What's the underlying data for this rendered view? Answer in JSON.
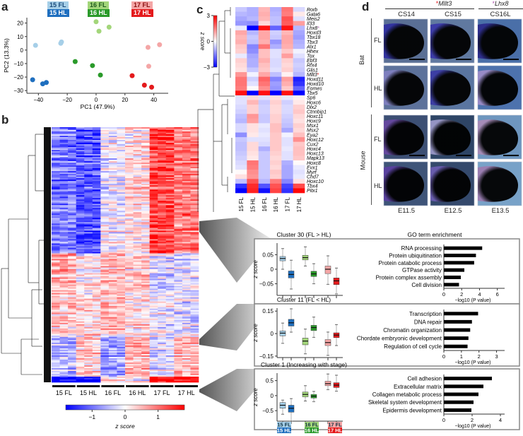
{
  "panels": {
    "a": "a",
    "b": "b",
    "c": "c",
    "d": "d"
  },
  "colors": {
    "15FL": "#a6cfe8",
    "15HL": "#1f6fbf",
    "16FL": "#a3d67a",
    "16HL": "#2a9a2a",
    "17FL": "#f4a6a6",
    "17HL": "#e41a1c"
  },
  "legend": [
    {
      "label": "15 FL",
      "key": "15FL"
    },
    {
      "label": "15 HL",
      "key": "15HL"
    },
    {
      "label": "16 FL",
      "key": "16FL"
    },
    {
      "label": "16 HL",
      "key": "16HL"
    },
    {
      "label": "17 FL",
      "key": "17FL"
    },
    {
      "label": "17 HL",
      "key": "17HL"
    }
  ],
  "chart_data": [
    {
      "id": "pca",
      "type": "scatter",
      "xlabel": "PC1 (47.9%)",
      "ylabel": "PC2 (13.3%)",
      "xlim": [
        -48,
        50
      ],
      "ylim": [
        -32,
        24
      ],
      "xticks": [
        -40,
        -20,
        0,
        20,
        40
      ],
      "yticks": [
        20,
        10,
        0,
        -10,
        -20,
        -30
      ],
      "series": [
        {
          "name": "15 FL",
          "key": "15FL",
          "points": [
            [
              -42,
              3.5
            ],
            [
              -24.5,
              5
            ],
            [
              -24,
              6
            ]
          ]
        },
        {
          "name": "15 HL",
          "key": "15HL",
          "points": [
            [
              -44,
              -22
            ],
            [
              -37,
              -25
            ],
            [
              -34.5,
              -24
            ]
          ]
        },
        {
          "name": "16 FL",
          "key": "16FL",
          "points": [
            [
              0,
              21
            ],
            [
              2,
              14
            ],
            [
              9,
              17
            ]
          ]
        },
        {
          "name": "16 HL",
          "key": "16HL",
          "points": [
            [
              -14.5,
              -8.5
            ],
            [
              -2.5,
              -11.5
            ],
            [
              3,
              -18.5
            ]
          ]
        },
        {
          "name": "17 FL",
          "key": "17FL",
          "points": [
            [
              36,
              2
            ],
            [
              44,
              4
            ],
            [
              36.5,
              -12
            ]
          ]
        },
        {
          "name": "17 HL",
          "key": "17HL",
          "points": [
            [
              25,
              -19
            ],
            [
              33.5,
              -26
            ],
            [
              38.5,
              -27.5
            ]
          ]
        }
      ]
    },
    {
      "id": "heatmap-b",
      "type": "heatmap",
      "columns": [
        "15 FL",
        "15 HL",
        "16 FL",
        "16 HL",
        "17 FL",
        "17 HL"
      ],
      "colorbar": {
        "label": "z score",
        "ticks": [
          -1,
          0,
          1
        ],
        "range": [
          -1.8,
          1.8
        ]
      },
      "description": "Clustered gene expression z-scores, 3 replicates per group"
    },
    {
      "id": "heatmap-c",
      "type": "heatmap",
      "columns": [
        "15 FL",
        "15 HL",
        "16 FL",
        "16 HL",
        "17 FL",
        "17 HL"
      ],
      "colorbar": {
        "label": "z score",
        "ticks": [
          3,
          0,
          -3
        ],
        "range": [
          -3,
          3
        ]
      },
      "rows": [
        {
          "gene": "Rorb",
          "v": [
            -0.6,
            -0.9,
            0.8,
            -0.9,
            1.6,
            -0.4
          ]
        },
        {
          "gene": "Gata6",
          "v": [
            -0.8,
            -0.9,
            0.9,
            -0.8,
            1.5,
            0.2
          ]
        },
        {
          "gene": "Meis2",
          "v": [
            -1.0,
            -0.8,
            0.8,
            -0.7,
            2.0,
            -0.3
          ]
        },
        {
          "gene": "Il33",
          "v": [
            -1.2,
            -1.3,
            0.4,
            -0.7,
            1.9,
            1.1
          ]
        },
        {
          "gene": "Lhx8*",
          "v": [
            -0.2,
            -3,
            2.8,
            -1.8,
            2.8,
            -0.8
          ],
          "star": "#b05ab0"
        },
        {
          "gene": "Hoxd3",
          "v": [
            1.0,
            -0.8,
            1.0,
            -0.5,
            0.8,
            -1.0
          ]
        },
        {
          "gene": "Tbx18",
          "v": [
            0.8,
            -0.6,
            1.0,
            -0.6,
            1.0,
            -1.1
          ]
        },
        {
          "gene": "Tbx3",
          "v": [
            0.9,
            -0.7,
            0.9,
            -1.2,
            1.0,
            -0.9
          ]
        },
        {
          "gene": "Alx1",
          "v": [
            0.6,
            -1.4,
            1.6,
            -0.9,
            0.9,
            -0.8
          ]
        },
        {
          "gene": "Hhex",
          "v": [
            0.5,
            -1.3,
            0.7,
            -0.3,
            0.6,
            -0.1
          ]
        },
        {
          "gene": "Tox",
          "v": [
            -0.2,
            -1.0,
            0.7,
            -0.3,
            1.1,
            -0.3
          ]
        },
        {
          "gene": "Ebf3",
          "v": [
            0.5,
            -0.9,
            0.9,
            -0.4,
            0.5,
            -0.6
          ]
        },
        {
          "gene": "Rfx4",
          "v": [
            0.4,
            -0.9,
            0.7,
            -0.4,
            0.4,
            -0.5
          ]
        },
        {
          "gene": "Glis1",
          "v": [
            0.3,
            -0.6,
            0.6,
            -0.3,
            0.5,
            -0.6
          ]
        },
        {
          "gene": "Mllt3*",
          "v": [
            1.2,
            -0.1,
            1.0,
            -0.7,
            0.1,
            -0.8
          ],
          "star": "#e41a1c"
        },
        {
          "gene": "Hoxd11",
          "v": [
            1.6,
            -0.5,
            1.8,
            -1.4,
            1.1,
            -2.6
          ]
        },
        {
          "gene": "Hoxd10",
          "v": [
            1.6,
            -0.3,
            1.6,
            -1.1,
            0.9,
            -2.4
          ]
        },
        {
          "gene": "Eomes",
          "v": [
            1.5,
            0.0,
            1.3,
            -1.2,
            0.6,
            -1.8
          ]
        },
        {
          "gene": "Tbx5",
          "v": [
            2.8,
            -3,
            2.8,
            -3,
            2.8,
            -3
          ]
        },
        {
          "gene": "Sp6",
          "v": [
            -0.3,
            0.4,
            -0.3,
            0.3,
            -0.2,
            0.1
          ]
        },
        {
          "gene": "Hoxc6",
          "v": [
            -0.3,
            0.8,
            -0.6,
            0.5,
            -0.5,
            0.2
          ]
        },
        {
          "gene": "Dlx2",
          "v": [
            -0.4,
            0.5,
            -0.5,
            0.4,
            -0.4,
            0.5
          ]
        },
        {
          "gene": "Ctnnbip1",
          "v": [
            -0.5,
            0.5,
            -0.5,
            0.4,
            -0.4,
            0.6
          ]
        },
        {
          "gene": "Hoxc11",
          "v": [
            -0.7,
            1.2,
            -0.6,
            0.5,
            -0.5,
            0.4
          ]
        },
        {
          "gene": "Hoxc9",
          "v": [
            -0.8,
            1.1,
            -0.6,
            0.5,
            -0.6,
            0.3
          ]
        },
        {
          "gene": "Msx1",
          "v": [
            -0.4,
            0.3,
            -0.2,
            0.7,
            -0.7,
            0.5
          ]
        },
        {
          "gene": "Msx2",
          "v": [
            -0.4,
            0.3,
            -0.3,
            0.7,
            -1.0,
            0.4
          ]
        },
        {
          "gene": "Eya2",
          "v": [
            -1.3,
            0.2,
            -0.2,
            0.6,
            -0.1,
            0.7
          ]
        },
        {
          "gene": "Hoxc12",
          "v": [
            -0.6,
            -0.3,
            -0.3,
            0.6,
            -0.3,
            1.3
          ]
        },
        {
          "gene": "Cux2",
          "v": [
            -0.7,
            0.4,
            -0.4,
            0.6,
            -0.3,
            0.6
          ]
        },
        {
          "gene": "Hoxc4",
          "v": [
            -0.7,
            0.4,
            -0.9,
            0.6,
            -0.2,
            0.7
          ]
        },
        {
          "gene": "Hoxc13",
          "v": [
            -0.6,
            0.3,
            -0.6,
            0.5,
            -0.3,
            0.7
          ]
        },
        {
          "gene": "Mapk13",
          "v": [
            -0.5,
            0.2,
            -0.6,
            0.4,
            -0.3,
            0.6
          ]
        },
        {
          "gene": "Hoxc8",
          "v": [
            -0.4,
            1.6,
            -0.6,
            0.5,
            -0.9,
            0.0
          ]
        },
        {
          "gene": "Evx1",
          "v": [
            -0.3,
            1.5,
            -0.6,
            0.4,
            -1.0,
            -0.2
          ]
        },
        {
          "gene": "Myrf",
          "v": [
            0.0,
            1.3,
            -0.6,
            0.6,
            -1.0,
            -0.3
          ]
        },
        {
          "gene": "Chd7",
          "v": [
            0.3,
            1.2,
            -0.6,
            0.5,
            -1.0,
            -0.2
          ]
        },
        {
          "gene": "Hoxc10",
          "v": [
            -0.7,
            2.0,
            -0.8,
            1.5,
            -1.4,
            0.3
          ]
        },
        {
          "gene": "Tbx4",
          "v": [
            -2.4,
            2.5,
            -2.0,
            2.0,
            -2.2,
            2.1
          ]
        },
        {
          "gene": "Pitx1",
          "v": [
            -3,
            2.6,
            -2.8,
            2.2,
            -2.4,
            2.9
          ]
        }
      ]
    },
    {
      "id": "cluster30-box",
      "type": "box",
      "title": "Cluster 30 (FL > HL)",
      "ylabel": "z score",
      "yticks": [
        0.05,
        0,
        -0.05
      ],
      "ytick_labels": [
        "0.05",
        "0",
        "−0.05"
      ],
      "ylim": [
        -0.09,
        0.09
      ],
      "boxes": [
        {
          "key": "15FL",
          "min": 0.0,
          "q1": 0.029,
          "med": 0.037,
          "q3": 0.044,
          "max": 0.071
        },
        {
          "key": "15HL",
          "min": -0.068,
          "q1": -0.03,
          "med": -0.018,
          "q3": -0.006,
          "max": 0.031
        },
        {
          "key": "16FL",
          "min": 0.011,
          "q1": 0.032,
          "med": 0.04,
          "q3": 0.048,
          "max": 0.077
        },
        {
          "key": "16HL",
          "min": -0.05,
          "q1": -0.025,
          "med": -0.016,
          "q3": -0.007,
          "max": 0.019
        },
        {
          "key": "17FL",
          "min": -0.052,
          "q1": -0.015,
          "med": 0.0,
          "q3": 0.011,
          "max": 0.046
        },
        {
          "key": "17HL",
          "min": -0.085,
          "q1": -0.053,
          "med": -0.04,
          "q3": -0.03,
          "max": 0.004
        }
      ]
    },
    {
      "id": "cluster30-go",
      "type": "bar",
      "title": "GO term enrichment",
      "xlabel": "−log10 (P value)",
      "xticks": [
        0,
        2,
        4,
        6
      ],
      "xlim": [
        0,
        6.5
      ],
      "categories": [
        "RNA processing",
        "Protein ubiquitination",
        "Protein catabolic process",
        "GTPase activity",
        "Protein complex assembly",
        "Cell division"
      ],
      "values": [
        4.3,
        3.6,
        3.4,
        2.3,
        1.9,
        1.7
      ]
    },
    {
      "id": "cluster11-box",
      "type": "box",
      "title": "Cluster 11 (FL < HL)",
      "ylabel": "z score",
      "yticks": [
        0.15,
        0,
        -0.15
      ],
      "ytick_labels": [
        "0.15",
        "0",
        "−0.15"
      ],
      "ylim": [
        -0.16,
        0.17
      ],
      "boxes": [
        {
          "key": "15FL",
          "min": -0.065,
          "q1": -0.015,
          "med": 0.003,
          "q3": 0.018,
          "max": 0.07
        },
        {
          "key": "15HL",
          "min": 0.01,
          "q1": 0.05,
          "med": 0.072,
          "q3": 0.095,
          "max": 0.165
        },
        {
          "key": "16FL",
          "min": -0.135,
          "q1": -0.075,
          "med": -0.05,
          "q3": -0.03,
          "max": 0.03
        },
        {
          "key": "16HL",
          "min": -0.025,
          "q1": 0.02,
          "med": 0.04,
          "q3": 0.055,
          "max": 0.11
        },
        {
          "key": "17FL",
          "min": -0.145,
          "q1": -0.08,
          "med": -0.06,
          "q3": -0.04,
          "max": 0.01
        },
        {
          "key": "17HL",
          "min": -0.08,
          "q1": -0.027,
          "med": -0.01,
          "q3": 0.005,
          "max": 0.06
        }
      ]
    },
    {
      "id": "cluster11-go",
      "type": "bar",
      "xlabel": "−log10 (P value)",
      "xticks": [
        0,
        1,
        2,
        3
      ],
      "xlim": [
        0,
        3.3
      ],
      "categories": [
        "Transcription",
        "DNA repair",
        "Chromatin organization",
        "Chordate embryonic development",
        "Regulation of cell cycle"
      ],
      "values": [
        1.95,
        1.6,
        1.5,
        1.4,
        1.35
      ]
    },
    {
      "id": "cluster1-box",
      "type": "box",
      "title": "Cluster 1 (Increasing with stage)",
      "ylabel": "z score",
      "yticks": [
        0.5,
        0,
        -0.5
      ],
      "ytick_labels": [
        "0.5",
        "0",
        "−0.5"
      ],
      "ylim": [
        -0.85,
        0.75
      ],
      "boxes": [
        {
          "key": "15FL",
          "min": -0.62,
          "q1": -0.42,
          "med": -0.32,
          "q3": -0.23,
          "max": -0.15
        },
        {
          "key": "15HL",
          "min": -0.85,
          "q1": -0.55,
          "med": -0.42,
          "q3": -0.32,
          "max": -0.1
        },
        {
          "key": "16FL",
          "min": -0.18,
          "q1": -0.04,
          "med": 0.04,
          "q3": 0.12,
          "max": 0.33
        },
        {
          "key": "16HL",
          "min": -0.2,
          "q1": -0.08,
          "med": -0.02,
          "q3": 0.04,
          "max": 0.14
        },
        {
          "key": "17FL",
          "min": 0.2,
          "q1": 0.33,
          "med": 0.4,
          "q3": 0.48,
          "max": 0.72
        },
        {
          "key": "17HL",
          "min": 0.15,
          "q1": 0.27,
          "med": 0.35,
          "q3": 0.43,
          "max": 0.68
        }
      ]
    },
    {
      "id": "cluster1-go",
      "type": "bar",
      "xlabel": "−log10 (P value)",
      "xticks": [
        0,
        2,
        4
      ],
      "xlim": [
        0,
        4.1
      ],
      "categories": [
        "Cell adhesion",
        "Extracellular matrix",
        "Collagen metabolic process",
        "Skeletal system development",
        "Epidermis development"
      ],
      "values": [
        3.4,
        2.8,
        2.45,
        2.1,
        1.95
      ]
    }
  ],
  "panel_d": {
    "gene1": "Mllt3",
    "gene1_star_color": "#e41a1c",
    "gene2": "Lhx8",
    "gene2_star_color": "#b05ab0",
    "star": "*",
    "bat_stages": [
      "CS14",
      "CS15",
      "CS16L"
    ],
    "mouse_stages": [
      "E11.5",
      "E12.5",
      "E13.5"
    ],
    "species": [
      "Bat",
      "Mouse"
    ],
    "limbs": [
      "FL",
      "HL"
    ]
  }
}
